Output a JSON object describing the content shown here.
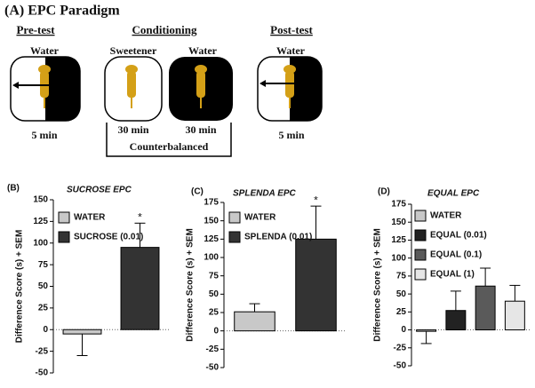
{
  "diagram": {
    "title": "(A) EPC Paradigm",
    "pretest": {
      "heading": "Pre-test",
      "label": "Water",
      "time": "5 min"
    },
    "conditioning": {
      "heading": "Conditioning",
      "left_label": "Sweetener",
      "right_label": "Water",
      "left_time": "30 min",
      "right_time": "30 min",
      "note": "Counterbalanced"
    },
    "posttest": {
      "heading": "Post-test",
      "label": "Water",
      "time": "5 min"
    }
  },
  "chart_data": [
    {
      "type": "bar",
      "panel": "(B)",
      "title": "SUCROSE EPC",
      "y_label": "Difference Score (s) + SEM",
      "ylim": [
        -50,
        150
      ],
      "yticks": [
        -50,
        -25,
        0,
        25,
        50,
        75,
        100,
        125,
        150
      ],
      "legend": "upper left",
      "series": [
        {
          "name": "WATER",
          "color": "#c8c8c8",
          "values": [
            -5
          ],
          "errors": [
            25
          ]
        },
        {
          "name": "SUCROSE (0.01)",
          "color": "#333333",
          "values": [
            95
          ],
          "errors": [
            28
          ],
          "annotation": "*"
        }
      ]
    },
    {
      "type": "bar",
      "panel": "(C)",
      "title": "SPLENDA EPC",
      "y_label": "Difference Score (s) + SEM",
      "ylim": [
        -50,
        175
      ],
      "yticks": [
        -50,
        -25,
        0,
        25,
        50,
        75,
        100,
        125,
        150,
        175
      ],
      "legend": "upper left",
      "series": [
        {
          "name": "WATER",
          "color": "#c8c8c8",
          "values": [
            26
          ],
          "errors": [
            11
          ]
        },
        {
          "name": "SPLENDA (0.01)",
          "color": "#333333",
          "values": [
            125
          ],
          "errors": [
            45
          ],
          "annotation": "*"
        }
      ]
    },
    {
      "type": "bar",
      "panel": "(D)",
      "title": "EQUAL EPC",
      "y_label": "Difference Score (s) + SEM",
      "ylim": [
        -50,
        175
      ],
      "yticks": [
        -50,
        -25,
        0,
        25,
        50,
        75,
        100,
        125,
        150,
        175
      ],
      "legend": "upper left",
      "series": [
        {
          "name": "WATER",
          "color": "#c8c8c8",
          "values": [
            -2
          ],
          "errors": [
            17
          ]
        },
        {
          "name": "EQUAL (0.01)",
          "color": "#222222",
          "values": [
            27
          ],
          "errors": [
            27
          ]
        },
        {
          "name": "EQUAL (0.1)",
          "color": "#5a5a5a",
          "values": [
            61
          ],
          "errors": [
            25
          ]
        },
        {
          "name": "EQUAL (1)",
          "color": "#e6e6e6",
          "values": [
            40
          ],
          "errors": [
            22
          ]
        }
      ]
    }
  ]
}
